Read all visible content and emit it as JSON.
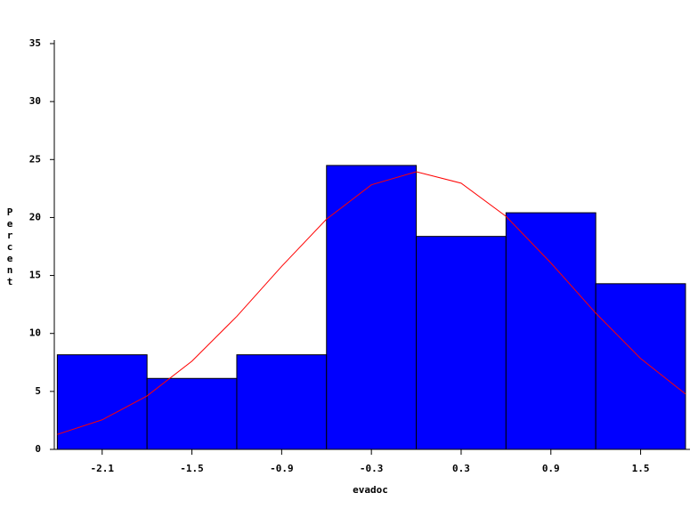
{
  "chart_data": {
    "type": "histogram",
    "x_label": "evadoc",
    "y_label": "Percent",
    "bins": [
      -2.4,
      -1.8,
      -1.2,
      -0.6,
      0,
      0.6,
      1.2,
      1.8
    ],
    "values": [
      8.16,
      6.12,
      8.16,
      24.49,
      18.37,
      20.41,
      14.29
    ],
    "color": "#0000ff",
    "curve": {
      "color": "#ff0000",
      "x": [
        -2.4,
        -2.1,
        -1.8,
        -1.5,
        -1.2,
        -0.9,
        -0.6,
        -0.3,
        0,
        0.3,
        0.6,
        0.9,
        1.2,
        1.5,
        1.8
      ],
      "values": [
        1.29,
        2.55,
        4.61,
        7.61,
        11.47,
        15.79,
        19.86,
        22.82,
        23.95,
        22.96,
        20.1,
        16.08,
        11.75,
        7.84,
        4.78
      ]
    },
    "xlim": [
      -2.42,
      1.83
    ],
    "ylim": [
      0,
      35
    ],
    "xticks": [
      -2.1,
      -1.5,
      -0.9,
      -0.3,
      0.3,
      0.9,
      1.5
    ],
    "yticks": [
      0,
      5,
      10,
      15,
      20,
      25,
      30,
      35
    ]
  }
}
